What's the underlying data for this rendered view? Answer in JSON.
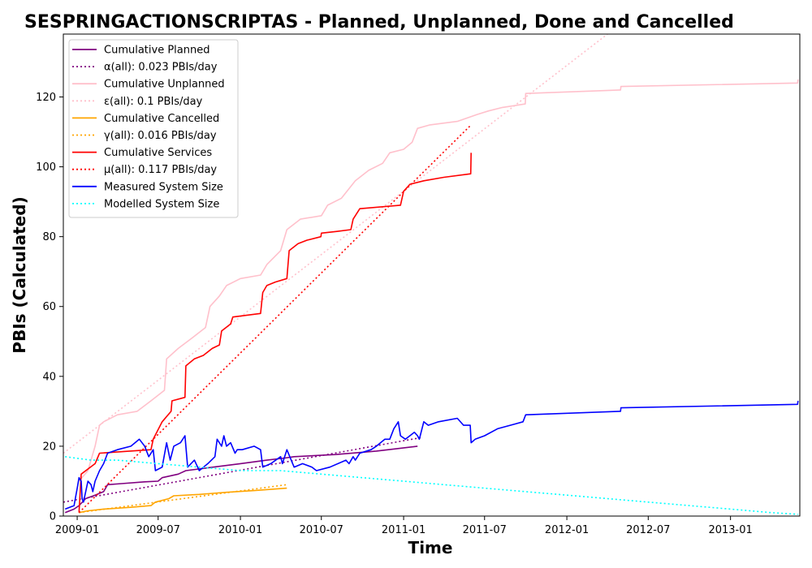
{
  "chart_data": {
    "type": "line",
    "title": "SESPRINGACTIONSCRIPTAS - Planned, Unplanned, Done  and Cancelled",
    "xlabel": "Time",
    "ylabel": "PBIs (Calculated)",
    "xlim": [
      "2008-12-01",
      "2013-06-05"
    ],
    "ylim": [
      0,
      138
    ],
    "xticks": [
      "2009-01",
      "2009-07",
      "2010-01",
      "2010-07",
      "2011-01",
      "2011-07",
      "2012-01",
      "2012-07",
      "2013-01"
    ],
    "yticks": [
      0,
      20,
      40,
      60,
      80,
      100,
      120
    ],
    "grid": false,
    "legend_position": "top-left",
    "series": [
      {
        "name": "Cumulative Planned",
        "color": "#800080",
        "style": "solid",
        "points": [
          [
            "2008-12-05",
            1
          ],
          [
            "2008-12-25",
            2
          ],
          [
            "2009-01-05",
            3
          ],
          [
            "2009-01-20",
            5
          ],
          [
            "2009-02-10",
            6
          ],
          [
            "2009-03-01",
            7
          ],
          [
            "2009-03-10",
            9
          ],
          [
            "2009-04-10",
            9.3
          ],
          [
            "2009-06-01",
            9.8
          ],
          [
            "2009-07-01",
            10
          ],
          [
            "2009-07-10",
            11
          ],
          [
            "2009-08-15",
            12
          ],
          [
            "2009-09-01",
            13
          ],
          [
            "2009-11-01",
            14
          ],
          [
            "2010-01-01",
            15
          ],
          [
            "2010-03-01",
            16
          ],
          [
            "2010-04-10",
            16.6
          ],
          [
            "2010-05-01",
            17
          ],
          [
            "2010-08-01",
            17.6
          ],
          [
            "2010-11-01",
            18.6
          ],
          [
            "2011-02-01",
            20
          ]
        ]
      },
      {
        "name": "α(all): 0.023 PBIs/day",
        "color": "#800080",
        "style": "dotted",
        "points": [
          [
            "2008-12-01",
            4
          ],
          [
            "2011-02-10",
            22.5
          ]
        ]
      },
      {
        "name": "Cumulative Unplanned",
        "color": "#ffc0cb",
        "style": "solid",
        "points": [
          [
            "2009-01-05",
            10
          ],
          [
            "2009-01-25",
            13
          ],
          [
            "2009-02-10",
            20
          ],
          [
            "2009-02-20",
            26
          ],
          [
            "2009-03-01",
            27
          ],
          [
            "2009-04-01",
            29
          ],
          [
            "2009-05-15",
            30
          ],
          [
            "2009-06-15",
            33
          ],
          [
            "2009-07-15",
            36
          ],
          [
            "2009-07-20",
            45
          ],
          [
            "2009-08-15",
            48
          ],
          [
            "2009-09-15",
            51
          ],
          [
            "2009-10-15",
            54
          ],
          [
            "2009-10-25",
            60
          ],
          [
            "2009-11-15",
            63
          ],
          [
            "2009-12-01",
            66
          ],
          [
            "2010-01-01",
            68
          ],
          [
            "2010-02-15",
            69
          ],
          [
            "2010-03-01",
            72
          ],
          [
            "2010-04-01",
            76
          ],
          [
            "2010-04-15",
            82
          ],
          [
            "2010-05-15",
            85
          ],
          [
            "2010-07-01",
            86
          ],
          [
            "2010-07-15",
            89
          ],
          [
            "2010-08-15",
            91
          ],
          [
            "2010-09-15",
            96
          ],
          [
            "2010-10-15",
            99
          ],
          [
            "2010-11-15",
            101
          ],
          [
            "2010-12-01",
            104
          ],
          [
            "2011-01-01",
            105
          ],
          [
            "2011-01-20",
            107
          ],
          [
            "2011-02-01",
            111
          ],
          [
            "2011-03-01",
            112
          ],
          [
            "2011-05-01",
            113
          ],
          [
            "2011-06-15",
            115
          ],
          [
            "2011-07-10",
            116
          ],
          [
            "2011-08-10",
            117
          ],
          [
            "2011-09-30",
            118
          ],
          [
            "2011-10-01",
            121
          ],
          [
            "2012-04-30",
            122
          ],
          [
            "2012-05-01",
            123
          ],
          [
            "2013-05-31",
            124
          ],
          [
            "2013-06-01",
            125
          ]
        ]
      },
      {
        "name": "ε(all): 0.1 PBIs/day",
        "color": "#ffc0cb",
        "style": "dotted",
        "points": [
          [
            "2008-12-01",
            18
          ],
          [
            "2012-04-01",
            138
          ]
        ]
      },
      {
        "name": "Cumulative Cancelled",
        "color": "#ffa500",
        "style": "solid",
        "points": [
          [
            "2009-01-05",
            1
          ],
          [
            "2009-01-25",
            1.5
          ],
          [
            "2009-03-01",
            2
          ],
          [
            "2009-05-01",
            2.5
          ],
          [
            "2009-06-15",
            3
          ],
          [
            "2009-06-25",
            4
          ],
          [
            "2009-07-25",
            5
          ],
          [
            "2009-08-05",
            5.8
          ],
          [
            "2009-10-01",
            6.2
          ],
          [
            "2009-12-01",
            6.8
          ],
          [
            "2010-02-01",
            7.3
          ],
          [
            "2010-04-15",
            8
          ]
        ]
      },
      {
        "name": "γ(all): 0.016 PBIs/day",
        "color": "#ffa500",
        "style": "dotted",
        "points": [
          [
            "2009-01-05",
            1
          ],
          [
            "2010-04-15",
            9
          ]
        ]
      },
      {
        "name": "Cumulative Services",
        "color": "#ff0000",
        "style": "solid",
        "points": [
          [
            "2009-01-05",
            1
          ],
          [
            "2009-01-10",
            12
          ],
          [
            "2009-02-10",
            15
          ],
          [
            "2009-02-20",
            18
          ],
          [
            "2009-06-15",
            19
          ],
          [
            "2009-06-20",
            22
          ],
          [
            "2009-07-10",
            27
          ],
          [
            "2009-07-30",
            30
          ],
          [
            "2009-08-01",
            33
          ],
          [
            "2009-08-30",
            34
          ],
          [
            "2009-09-01",
            43
          ],
          [
            "2009-09-20",
            45
          ],
          [
            "2009-10-10",
            46
          ],
          [
            "2009-10-30",
            48
          ],
          [
            "2009-11-15",
            49
          ],
          [
            "2009-11-20",
            53
          ],
          [
            "2009-12-10",
            55
          ],
          [
            "2009-12-15",
            57
          ],
          [
            "2010-02-15",
            58
          ],
          [
            "2010-02-20",
            64
          ],
          [
            "2010-03-01",
            66
          ],
          [
            "2010-03-20",
            67
          ],
          [
            "2010-04-15",
            68
          ],
          [
            "2010-04-20",
            76
          ],
          [
            "2010-05-10",
            78
          ],
          [
            "2010-05-30",
            79
          ],
          [
            "2010-06-30",
            80
          ],
          [
            "2010-07-01",
            81
          ],
          [
            "2010-08-05",
            81.5
          ],
          [
            "2010-09-05",
            82
          ],
          [
            "2010-09-10",
            85
          ],
          [
            "2010-09-25",
            88
          ],
          [
            "2010-12-25",
            89
          ],
          [
            "2011-01-01",
            93
          ],
          [
            "2011-01-15",
            95
          ],
          [
            "2011-02-15",
            96
          ],
          [
            "2011-04-01",
            97
          ],
          [
            "2011-05-31",
            98
          ],
          [
            "2011-06-01",
            104
          ]
        ]
      },
      {
        "name": "μ(all): 0.117 PBIs/day",
        "color": "#ff0000",
        "style": "dotted",
        "points": [
          [
            "2009-01-05",
            1
          ],
          [
            "2011-06-01",
            112
          ]
        ]
      },
      {
        "name": "Measured System Size",
        "color": "#0000ff",
        "style": "solid",
        "points": [
          [
            "2008-12-05",
            2
          ],
          [
            "2008-12-25",
            3
          ],
          [
            "2009-01-01",
            8
          ],
          [
            "2009-01-05",
            11
          ],
          [
            "2009-01-10",
            10
          ],
          [
            "2009-01-12",
            5
          ],
          [
            "2009-01-15",
            4
          ],
          [
            "2009-01-25",
            10
          ],
          [
            "2009-02-01",
            9
          ],
          [
            "2009-02-05",
            7
          ],
          [
            "2009-02-10",
            10
          ],
          [
            "2009-02-20",
            13
          ],
          [
            "2009-03-01",
            15
          ],
          [
            "2009-03-10",
            18
          ],
          [
            "2009-04-01",
            19
          ],
          [
            "2009-05-01",
            20
          ],
          [
            "2009-05-20",
            22
          ],
          [
            "2009-06-01",
            20
          ],
          [
            "2009-06-10",
            17
          ],
          [
            "2009-06-20",
            19
          ],
          [
            "2009-06-25",
            13
          ],
          [
            "2009-07-10",
            14
          ],
          [
            "2009-07-20",
            21
          ],
          [
            "2009-07-28",
            16
          ],
          [
            "2009-08-05",
            20
          ],
          [
            "2009-08-20",
            21
          ],
          [
            "2009-08-30",
            23
          ],
          [
            "2009-09-05",
            14
          ],
          [
            "2009-09-20",
            16
          ],
          [
            "2009-10-01",
            13
          ],
          [
            "2009-10-20",
            15
          ],
          [
            "2009-11-05",
            17
          ],
          [
            "2009-11-10",
            22
          ],
          [
            "2009-11-20",
            20
          ],
          [
            "2009-11-25",
            23
          ],
          [
            "2009-12-01",
            20
          ],
          [
            "2009-12-10",
            21
          ],
          [
            "2009-12-20",
            18
          ],
          [
            "2009-12-25",
            19
          ],
          [
            "2010-01-05",
            19
          ],
          [
            "2010-02-01",
            20
          ],
          [
            "2010-02-15",
            19
          ],
          [
            "2010-02-20",
            14
          ],
          [
            "2010-03-10",
            15
          ],
          [
            "2010-04-01",
            17
          ],
          [
            "2010-04-05",
            15
          ],
          [
            "2010-04-15",
            19
          ],
          [
            "2010-05-01",
            14
          ],
          [
            "2010-05-20",
            15
          ],
          [
            "2010-06-10",
            14
          ],
          [
            "2010-06-20",
            13
          ],
          [
            "2010-07-20",
            14
          ],
          [
            "2010-08-25",
            16
          ],
          [
            "2010-09-01",
            15
          ],
          [
            "2010-09-10",
            17
          ],
          [
            "2010-09-15",
            16
          ],
          [
            "2010-09-25",
            18
          ],
          [
            "2010-10-20",
            19
          ],
          [
            "2010-11-01",
            20
          ],
          [
            "2010-11-20",
            22
          ],
          [
            "2010-12-01",
            22
          ],
          [
            "2010-12-10",
            25
          ],
          [
            "2010-12-20",
            27
          ],
          [
            "2010-12-25",
            23
          ],
          [
            "2011-01-05",
            22
          ],
          [
            "2011-01-15",
            23
          ],
          [
            "2011-01-25",
            24
          ],
          [
            "2011-02-01",
            23
          ],
          [
            "2011-02-05",
            22
          ],
          [
            "2011-02-15",
            27
          ],
          [
            "2011-02-25",
            26
          ],
          [
            "2011-03-20",
            27
          ],
          [
            "2011-05-01",
            28
          ],
          [
            "2011-05-15",
            26
          ],
          [
            "2011-05-30",
            26
          ],
          [
            "2011-06-01",
            21
          ],
          [
            "2011-06-10",
            22
          ],
          [
            "2011-07-01",
            23
          ],
          [
            "2011-07-30",
            25
          ],
          [
            "2011-09-25",
            27
          ],
          [
            "2011-10-01",
            29
          ],
          [
            "2012-04-30",
            30
          ],
          [
            "2012-05-01",
            31
          ],
          [
            "2013-05-31",
            32
          ],
          [
            "2013-06-01",
            33
          ]
        ]
      },
      {
        "name": "Modelled System Size",
        "color": "#00ffff",
        "style": "dotted",
        "points": [
          [
            "2008-12-05",
            17
          ],
          [
            "2009-02-01",
            16
          ],
          [
            "2009-04-01",
            16
          ],
          [
            "2009-07-01",
            15
          ],
          [
            "2009-10-01",
            14
          ],
          [
            "2010-01-01",
            13
          ],
          [
            "2010-04-01",
            13
          ],
          [
            "2010-07-01",
            12
          ],
          [
            "2010-10-01",
            11
          ],
          [
            "2011-01-01",
            10
          ],
          [
            "2011-04-01",
            9
          ],
          [
            "2011-07-01",
            8
          ],
          [
            "2011-10-01",
            7
          ],
          [
            "2012-01-01",
            6
          ],
          [
            "2012-04-01",
            5
          ],
          [
            "2012-07-01",
            4
          ],
          [
            "2012-10-01",
            3
          ],
          [
            "2013-01-01",
            2
          ],
          [
            "2013-04-01",
            1
          ],
          [
            "2013-06-01",
            0.5
          ]
        ]
      }
    ]
  }
}
